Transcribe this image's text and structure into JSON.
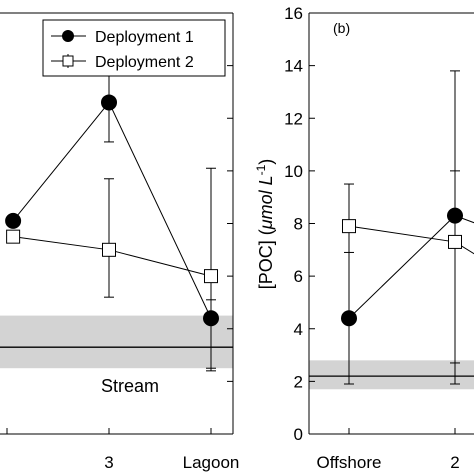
{
  "chart_data": [
    {
      "type": "line",
      "panel_label": "",
      "x_categories": [
        "",
        "3",
        "Lagoon"
      ],
      "ylim": [
        0,
        16
      ],
      "yticks": [],
      "grid": false,
      "ylabel": "",
      "legend": {
        "placement": "top-right",
        "entries": [
          {
            "label": "Deployment 1",
            "marker": "filled-circle"
          },
          {
            "label": "Deployment 2",
            "marker": "open-square"
          }
        ]
      },
      "series": [
        {
          "name": "Deployment 1",
          "marker": "filled-circle",
          "points": [
            {
              "x": 1.06,
              "y": 8.1,
              "err": null
            },
            {
              "x": 2,
              "y": 12.6,
              "err": [
                11.1,
                14.2
              ]
            },
            {
              "x": 3,
              "y": 4.4,
              "err": [
                2.5,
                5.1
              ]
            }
          ]
        },
        {
          "name": "Deployment 2",
          "marker": "open-square",
          "points": [
            {
              "x": 1.06,
              "y": 7.5,
              "err": null
            },
            {
              "x": 2,
              "y": 7.0,
              "err": [
                5.2,
                9.7
              ]
            },
            {
              "x": 3,
              "y": 6.0,
              "err": [
                2.4,
                10.1
              ]
            }
          ]
        }
      ],
      "reference_band": {
        "label": "Stream",
        "center": 3.3,
        "low": 2.5,
        "high": 4.5
      }
    },
    {
      "type": "line",
      "panel_label": "(b)",
      "x_categories": [
        "Offshore",
        "2"
      ],
      "ylim": [
        0,
        16
      ],
      "yticks": [
        "0",
        "2",
        "4",
        "6",
        "8",
        "10",
        "12",
        "14",
        "16"
      ],
      "grid": false,
      "ylabel_main": "[POC] (",
      "ylabel_unit": "μmol L",
      "ylabel_sup": "-1",
      "ylabel_close": ")",
      "series": [
        {
          "name": "Deployment 1",
          "marker": "filled-circle",
          "points": [
            {
              "x": 1,
              "y": 4.4,
              "err": [
                1.9,
                6.9
              ]
            },
            {
              "x": 2,
              "y": 8.3,
              "err": [
                2.7,
                13.8
              ]
            },
            {
              "x": 2.4,
              "y": 7.7,
              "err": null
            }
          ]
        },
        {
          "name": "Deployment 2",
          "marker": "open-square",
          "points": [
            {
              "x": 1,
              "y": 7.9,
              "err": [
                1.9,
                9.5
              ]
            },
            {
              "x": 2,
              "y": 7.3,
              "err": [
                1.9,
                10.0
              ]
            },
            {
              "x": 2.4,
              "y": 6.3,
              "err": null
            }
          ]
        }
      ],
      "reference_band": {
        "label": "",
        "center": 2.2,
        "low": 1.7,
        "high": 2.8
      }
    }
  ]
}
